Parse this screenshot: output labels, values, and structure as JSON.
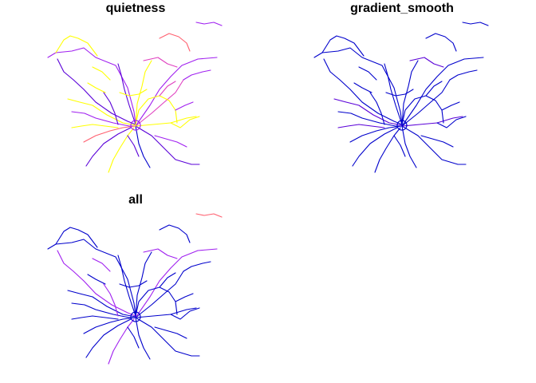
{
  "panels": [
    {
      "id": "quietness",
      "title": "quietness"
    },
    {
      "id": "gradient",
      "title": "gradient_smooth"
    },
    {
      "id": "all",
      "title": "all"
    }
  ],
  "colors": {
    "low": "#0000cc",
    "mid_low": "#5a00d8",
    "mid": "#a020f0",
    "mid_high": "#e040c0",
    "high": "#ff6070",
    "top": "#ffff00"
  }
}
